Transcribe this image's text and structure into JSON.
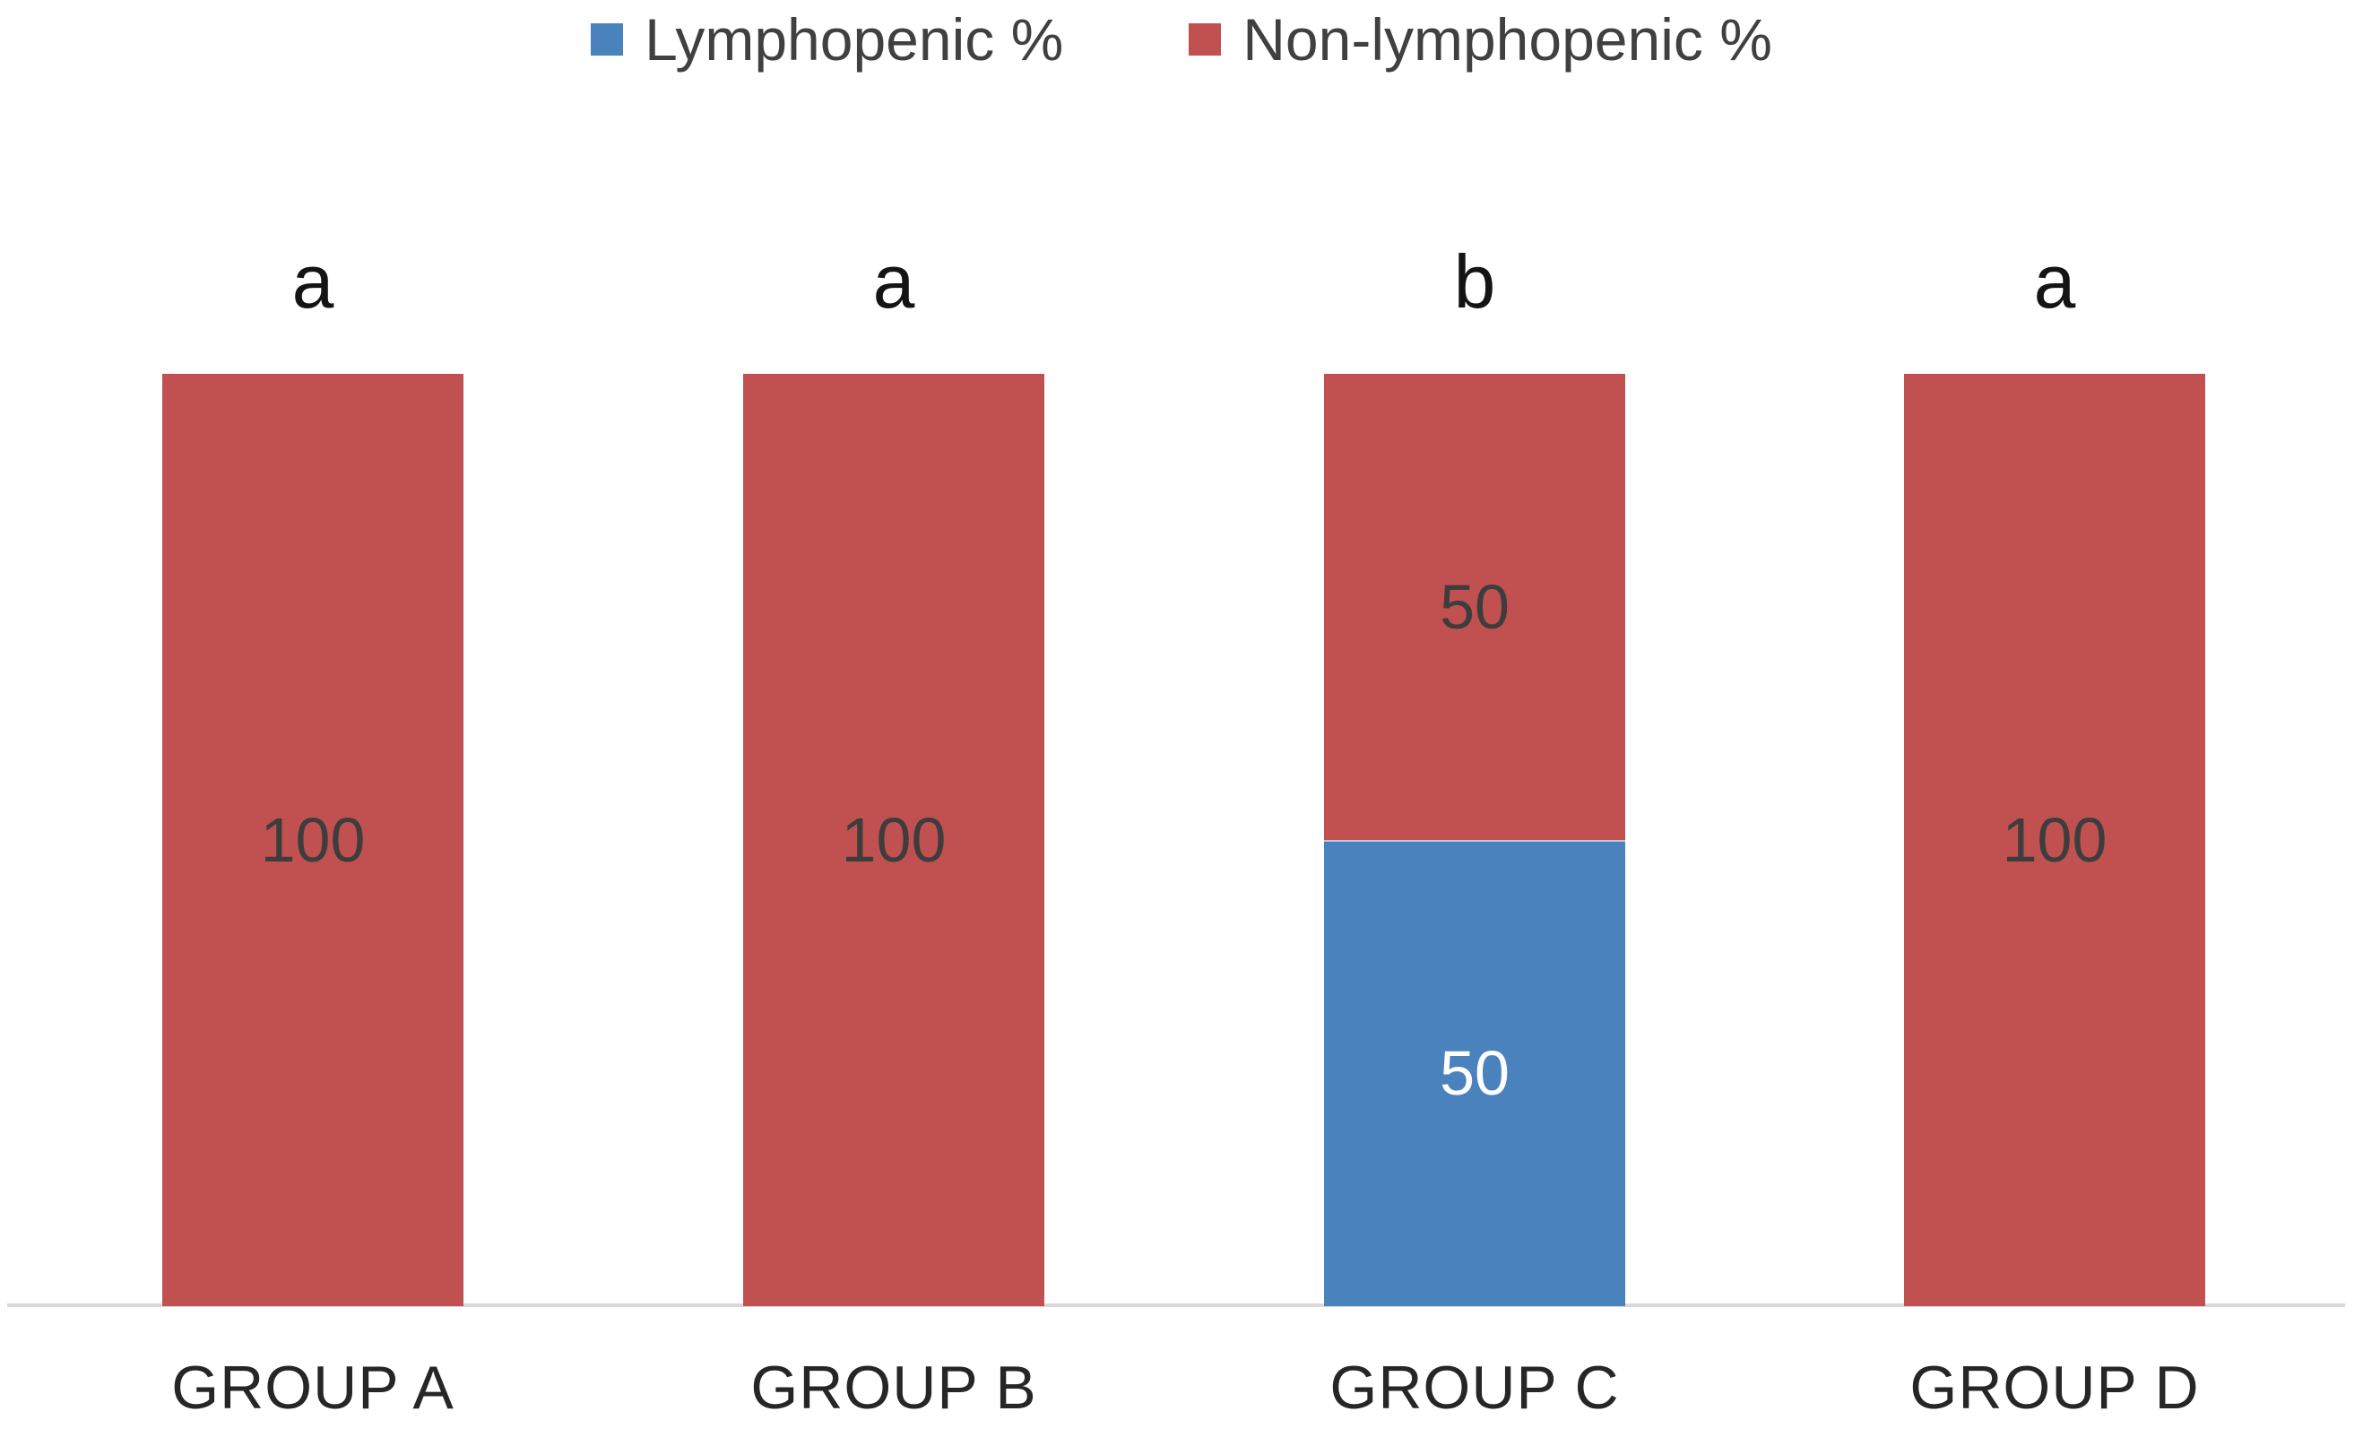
{
  "chart_data": {
    "type": "bar",
    "stacked": true,
    "title": "",
    "xlabel": "",
    "ylabel": "",
    "ylim": [
      0,
      100
    ],
    "grid": false,
    "legend_position": "top",
    "axis_line_color": "#D9D9D9",
    "categories": [
      "GROUP A",
      "GROUP B",
      "GROUP C",
      "GROUP D"
    ],
    "series": [
      {
        "name": "Lymphopenic %",
        "color": "#4A82BE",
        "label_color": "#FFFFFF",
        "values": [
          0,
          0,
          50,
          0
        ]
      },
      {
        "name": "Non-lymphopenic %",
        "color": "#C15150",
        "label_color": "#3D3D3D",
        "values": [
          100,
          100,
          50,
          100
        ]
      }
    ],
    "significance_letters": [
      "a",
      "a",
      "b",
      "a"
    ],
    "value_labels_shown": [
      100,
      100,
      50,
      50,
      100
    ]
  }
}
